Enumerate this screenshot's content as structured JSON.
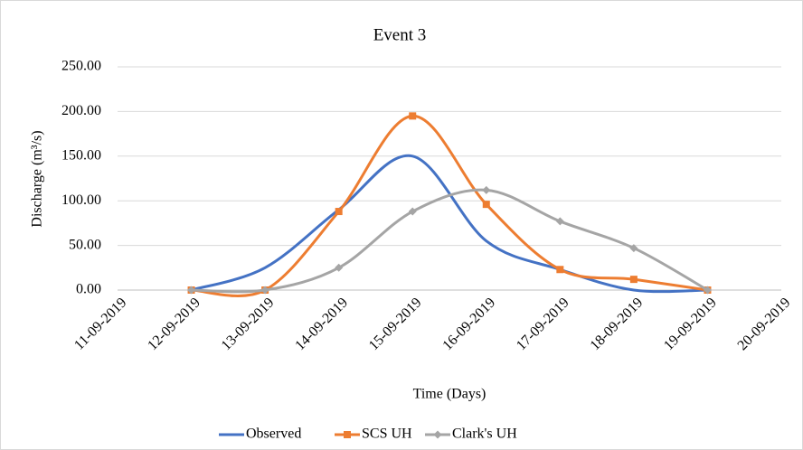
{
  "chart_data": {
    "type": "line",
    "title": "Event 3",
    "x_label": "Time (Days)",
    "y_label": "Discharge (m³/s)",
    "categories": [
      "11-09-2019",
      "12-09-2019",
      "13-09-2019",
      "14-09-2019",
      "15-09-2019",
      "16-09-2019",
      "17-09-2019",
      "18-09-2019",
      "19-09-2019",
      "20-09-2019"
    ],
    "series": [
      {
        "name": "Observed",
        "color": "#4472c4",
        "marker": "none",
        "values": [
          null,
          0,
          25,
          90,
          150,
          55,
          23,
          0,
          0,
          null
        ]
      },
      {
        "name": "SCS UH",
        "color": "#ed7d31",
        "marker": "square",
        "values": [
          null,
          0,
          0,
          88,
          195,
          96,
          23,
          12,
          0,
          null
        ]
      },
      {
        "name": "Clark's UH",
        "color": "#a5a5a5",
        "marker": "diamond",
        "values": [
          null,
          0,
          0,
          25,
          88,
          112,
          77,
          47,
          0,
          null
        ]
      }
    ],
    "ylim": [
      0,
      250
    ],
    "yticks": [
      {
        "value": 0,
        "label": "0.00"
      },
      {
        "value": 50,
        "label": "50.00"
      },
      {
        "value": 100,
        "label": "100.00"
      },
      {
        "value": 150,
        "label": "150.00"
      },
      {
        "value": 200,
        "label": "200.00"
      },
      {
        "value": 250,
        "label": "250.00"
      }
    ],
    "grid": true,
    "smooth": true,
    "legend": "bottom"
  }
}
